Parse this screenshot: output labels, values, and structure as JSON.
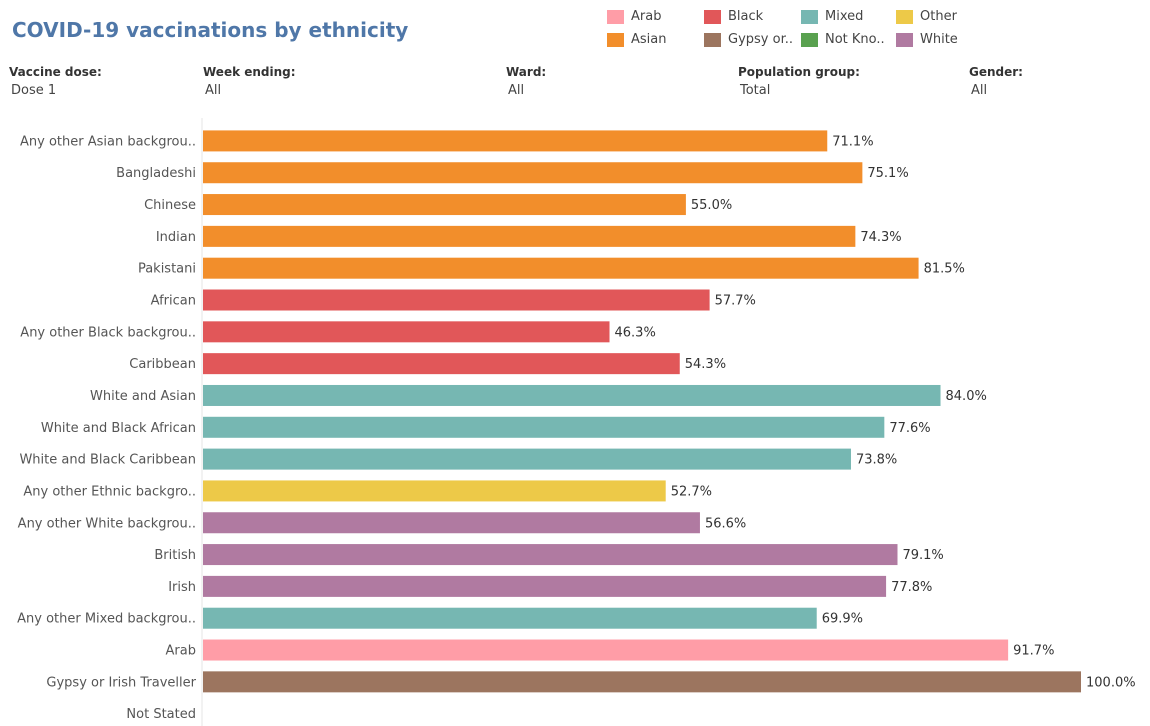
{
  "header": {
    "title": "COVID-19 vaccinations by ethnicity"
  },
  "legend": {
    "items": [
      {
        "label": "Arab",
        "color": "#ff9da7"
      },
      {
        "label": "Black",
        "color": "#e15759"
      },
      {
        "label": "Mixed",
        "color": "#76b7b2"
      },
      {
        "label": "Other",
        "color": "#edc948"
      },
      {
        "label": "Asian",
        "color": "#f28e2b"
      },
      {
        "label": "Gypsy or..",
        "color": "#9c755f"
      },
      {
        "label": "Not Kno..",
        "color": "#59a14f"
      },
      {
        "label": "White",
        "color": "#b07aa1"
      }
    ]
  },
  "filters": [
    {
      "label": "Vaccine dose:",
      "value": "Dose 1"
    },
    {
      "label": "Week ending:",
      "value": "All"
    },
    {
      "label": "Ward:",
      "value": "All"
    },
    {
      "label": "Population group:",
      "value": "Total"
    },
    {
      "label": "Gender:",
      "value": "All"
    }
  ],
  "chart_data": {
    "type": "bar",
    "orientation": "horizontal",
    "title": "COVID-19 vaccinations by ethnicity",
    "xlim": [
      0,
      100
    ],
    "value_format": "percent",
    "grid": false,
    "legend_position": "top-right",
    "categories": [
      "Any other Asian backgrou..",
      "Bangladeshi",
      "Chinese",
      "Indian",
      "Pakistani",
      "African",
      "Any other Black backgrou..",
      "Caribbean",
      "White and Asian",
      "White and Black African",
      "White and Black Caribbean",
      "Any other Ethnic backgro..",
      "Any other White backgrou..",
      "British",
      "Irish",
      "Any other Mixed backgrou..",
      "Arab",
      "Gypsy or Irish Traveller",
      "Not Stated"
    ],
    "values": [
      71.1,
      75.1,
      55.0,
      74.3,
      81.5,
      57.7,
      46.3,
      54.3,
      84.0,
      77.6,
      73.8,
      52.7,
      56.6,
      79.1,
      77.8,
      69.9,
      91.7,
      100.0,
      null
    ],
    "labels": [
      "71.1%",
      "75.1%",
      "55.0%",
      "74.3%",
      "81.5%",
      "57.7%",
      "46.3%",
      "54.3%",
      "84.0%",
      "77.6%",
      "73.8%",
      "52.7%",
      "56.6%",
      "79.1%",
      "77.8%",
      "69.9%",
      "91.7%",
      "100.0%",
      ""
    ],
    "groups": [
      "Asian",
      "Asian",
      "Asian",
      "Asian",
      "Asian",
      "Black",
      "Black",
      "Black",
      "Mixed",
      "Mixed",
      "Mixed",
      "Other",
      "White",
      "White",
      "White",
      "Mixed",
      "Arab",
      "Gypsy or..",
      "Not Kno.."
    ]
  }
}
